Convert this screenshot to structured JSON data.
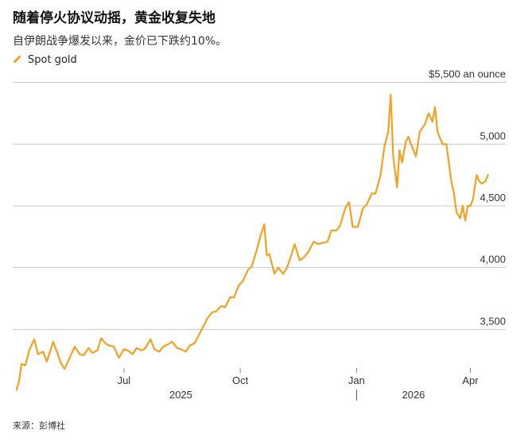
{
  "header": {
    "title": "随着停火协议动摇，黄金收复失地",
    "subtitle": "自伊朗战争爆发以来，金价已下跌约10%。",
    "legend_label": "Spot gold",
    "source": "来源：彭博社"
  },
  "colors": {
    "series": "#f4a020",
    "grid": "#c8c8c8",
    "text": "#333333"
  },
  "chart_data": {
    "type": "line",
    "title": "随着停火协议动摇，黄金收复失地",
    "subtitle": "自伊朗战争爆发以来，金价已下跌约10%。",
    "ylim": [
      3200,
      5600
    ],
    "y_ticks": [
      {
        "value": 5500,
        "label": "$5,500 an ounce"
      },
      {
        "value": 5000,
        "label": "5,000"
      },
      {
        "value": 4500,
        "label": "4,500"
      },
      {
        "value": 4000,
        "label": "4,000"
      },
      {
        "value": 3500,
        "label": "3,500"
      }
    ],
    "x_ticks": [
      {
        "date": "2025-07-01",
        "label": "Jul"
      },
      {
        "date": "2025-10-01",
        "label": "Oct"
      },
      {
        "date": "2026-01-01",
        "label": "Jan"
      },
      {
        "date": "2026-04-01",
        "label": "Apr"
      }
    ],
    "year_labels": [
      {
        "date": "2025-08-15",
        "label": "2025"
      },
      {
        "date": "2026-02-15",
        "label": "2026"
      }
    ],
    "year_divider": "2026-01-01",
    "grid": true,
    "series": [
      {
        "name": "Spot gold",
        "points": [
          [
            "2025-04-07",
            3010
          ],
          [
            "2025-04-09",
            3080
          ],
          [
            "2025-04-11",
            3220
          ],
          [
            "2025-04-14",
            3210
          ],
          [
            "2025-04-17",
            3330
          ],
          [
            "2025-04-21",
            3420
          ],
          [
            "2025-04-22",
            3380
          ],
          [
            "2025-04-24",
            3300
          ],
          [
            "2025-04-28",
            3320
          ],
          [
            "2025-05-01",
            3240
          ],
          [
            "2025-05-06",
            3400
          ],
          [
            "2025-05-09",
            3320
          ],
          [
            "2025-05-12",
            3230
          ],
          [
            "2025-05-15",
            3180
          ],
          [
            "2025-05-20",
            3290
          ],
          [
            "2025-05-23",
            3360
          ],
          [
            "2025-05-27",
            3300
          ],
          [
            "2025-05-30",
            3290
          ],
          [
            "2025-06-03",
            3350
          ],
          [
            "2025-06-06",
            3310
          ],
          [
            "2025-06-10",
            3330
          ],
          [
            "2025-06-13",
            3430
          ],
          [
            "2025-06-16",
            3390
          ],
          [
            "2025-06-19",
            3370
          ],
          [
            "2025-06-23",
            3360
          ],
          [
            "2025-06-27",
            3270
          ],
          [
            "2025-07-01",
            3340
          ],
          [
            "2025-07-04",
            3330
          ],
          [
            "2025-07-08",
            3300
          ],
          [
            "2025-07-11",
            3350
          ],
          [
            "2025-07-15",
            3330
          ],
          [
            "2025-07-18",
            3350
          ],
          [
            "2025-07-22",
            3420
          ],
          [
            "2025-07-25",
            3340
          ],
          [
            "2025-07-29",
            3320
          ],
          [
            "2025-08-01",
            3360
          ],
          [
            "2025-08-05",
            3380
          ],
          [
            "2025-08-08",
            3400
          ],
          [
            "2025-08-12",
            3350
          ],
          [
            "2025-08-15",
            3340
          ],
          [
            "2025-08-19",
            3320
          ],
          [
            "2025-08-22",
            3370
          ],
          [
            "2025-08-26",
            3390
          ],
          [
            "2025-08-29",
            3450
          ],
          [
            "2025-09-02",
            3530
          ],
          [
            "2025-09-05",
            3590
          ],
          [
            "2025-09-09",
            3640
          ],
          [
            "2025-09-12",
            3645
          ],
          [
            "2025-09-16",
            3690
          ],
          [
            "2025-09-19",
            3680
          ],
          [
            "2025-09-23",
            3760
          ],
          [
            "2025-09-26",
            3760
          ],
          [
            "2025-09-30",
            3860
          ],
          [
            "2025-10-03",
            3890
          ],
          [
            "2025-10-07",
            3980
          ],
          [
            "2025-10-10",
            4010
          ],
          [
            "2025-10-14",
            4140
          ],
          [
            "2025-10-17",
            4260
          ],
          [
            "2025-10-20",
            4350
          ],
          [
            "2025-10-22",
            4100
          ],
          [
            "2025-10-24",
            4110
          ],
          [
            "2025-10-28",
            3950
          ],
          [
            "2025-10-31",
            4000
          ],
          [
            "2025-11-04",
            3950
          ],
          [
            "2025-11-07",
            4000
          ],
          [
            "2025-11-11",
            4120
          ],
          [
            "2025-11-13",
            4190
          ],
          [
            "2025-11-17",
            4060
          ],
          [
            "2025-11-20",
            4080
          ],
          [
            "2025-11-24",
            4130
          ],
          [
            "2025-11-28",
            4210
          ],
          [
            "2025-12-02",
            4190
          ],
          [
            "2025-12-05",
            4200
          ],
          [
            "2025-12-09",
            4210
          ],
          [
            "2025-12-12",
            4300
          ],
          [
            "2025-12-16",
            4300
          ],
          [
            "2025-12-19",
            4340
          ],
          [
            "2025-12-23",
            4480
          ],
          [
            "2025-12-26",
            4530
          ],
          [
            "2025-12-29",
            4330
          ],
          [
            "2026-01-02",
            4330
          ],
          [
            "2026-01-06",
            4480
          ],
          [
            "2026-01-09",
            4510
          ],
          [
            "2026-01-13",
            4600
          ],
          [
            "2026-01-16",
            4600
          ],
          [
            "2026-01-20",
            4750
          ],
          [
            "2026-01-23",
            4980
          ],
          [
            "2026-01-26",
            5100
          ],
          [
            "2026-01-28",
            5400
          ],
          [
            "2026-01-30",
            4900
          ],
          [
            "2026-02-02",
            4650
          ],
          [
            "2026-02-04",
            4950
          ],
          [
            "2026-02-06",
            4850
          ],
          [
            "2026-02-09",
            5020
          ],
          [
            "2026-02-11",
            5060
          ],
          [
            "2026-02-13",
            5000
          ],
          [
            "2026-02-17",
            4900
          ],
          [
            "2026-02-20",
            5100
          ],
          [
            "2026-02-24",
            5160
          ],
          [
            "2026-02-27",
            5250
          ],
          [
            "2026-03-02",
            5180
          ],
          [
            "2026-03-04",
            5300
          ],
          [
            "2026-03-06",
            5100
          ],
          [
            "2026-03-10",
            5000
          ],
          [
            "2026-03-13",
            5000
          ],
          [
            "2026-03-17",
            4700
          ],
          [
            "2026-03-19",
            4600
          ],
          [
            "2026-03-21",
            4450
          ],
          [
            "2026-03-24",
            4400
          ],
          [
            "2026-03-26",
            4500
          ],
          [
            "2026-03-28",
            4380
          ],
          [
            "2026-03-30",
            4500
          ],
          [
            "2026-04-01",
            4500
          ],
          [
            "2026-04-03",
            4550
          ],
          [
            "2026-04-06",
            4750
          ],
          [
            "2026-04-08",
            4700
          ],
          [
            "2026-04-10",
            4680
          ],
          [
            "2026-04-13",
            4700
          ],
          [
            "2026-04-15",
            4750
          ]
        ]
      }
    ]
  }
}
